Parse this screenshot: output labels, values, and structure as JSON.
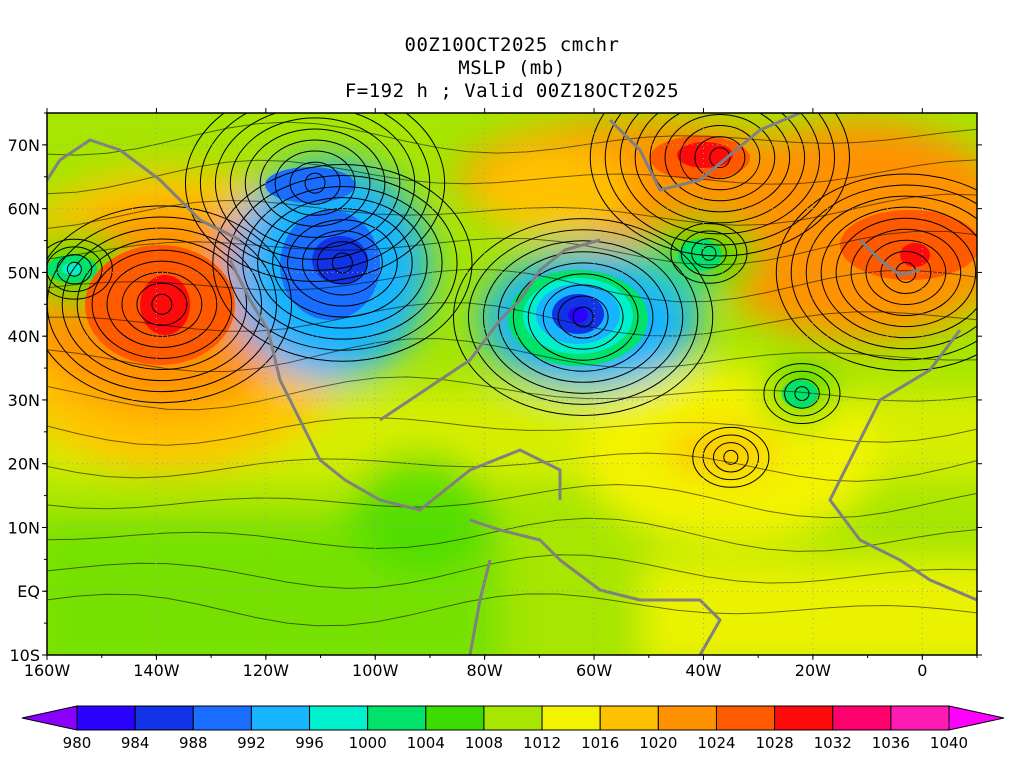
{
  "title": {
    "line1": "00Z10OCT2025 cmchr",
    "line2": "MSLP (mb)",
    "line3": "F=192 h ; Valid 00Z18OCT2025"
  },
  "map": {
    "lon_range": [
      -160,
      10
    ],
    "lat_range": [
      -10,
      75
    ],
    "lon_labels": [
      "160W",
      "140W",
      "120W",
      "100W",
      "80W",
      "60W",
      "40W",
      "20W",
      "0"
    ],
    "lon_values": [
      -160,
      -140,
      -120,
      -100,
      -80,
      -60,
      -40,
      -20,
      0
    ],
    "lat_labels": [
      "70N",
      "60N",
      "50N",
      "40N",
      "30N",
      "20N",
      "10N",
      "EQ",
      "10S"
    ],
    "lat_values": [
      70,
      60,
      50,
      40,
      30,
      20,
      10,
      0,
      -10
    ],
    "grid": true,
    "pressure_centers": [
      {
        "type": "high",
        "lon": -139,
        "lat": 45,
        "value": 1030
      },
      {
        "type": "low",
        "lon": -106,
        "lat": 51.5,
        "value": 990
      },
      {
        "type": "low",
        "lon": -111,
        "lat": 64,
        "value": 992
      },
      {
        "type": "low",
        "lon": -62,
        "lat": 43,
        "value": 980
      },
      {
        "type": "high",
        "lon": -37,
        "lat": 68,
        "value": 1032
      },
      {
        "type": "high",
        "lon": -3,
        "lat": 50,
        "value": 1030
      },
      {
        "type": "low",
        "lon": -155,
        "lat": 50.5,
        "value": 1000
      },
      {
        "type": "low",
        "lon": -39,
        "lat": 53,
        "value": 1004
      },
      {
        "type": "low",
        "lon": -22,
        "lat": 31,
        "value": 1004
      },
      {
        "type": "high",
        "lon": -35,
        "lat": 21,
        "value": 1020
      }
    ]
  },
  "colorbar": {
    "labels": [
      "980",
      "984",
      "988",
      "992",
      "996",
      "1000",
      "1004",
      "1008",
      "1012",
      "1016",
      "1020",
      "1024",
      "1028",
      "1032",
      "1036",
      "1040"
    ],
    "colors": [
      "#8a00ff",
      "#2a00ff",
      "#1232e6",
      "#1a6eff",
      "#17b4ff",
      "#00f0ce",
      "#00e26a",
      "#3cdc00",
      "#a6e600",
      "#f3f300",
      "#ffc200",
      "#ff9200",
      "#ff5a00",
      "#ff0a0a",
      "#ff006e",
      "#ff1ab4",
      "#ff00ff"
    ]
  }
}
